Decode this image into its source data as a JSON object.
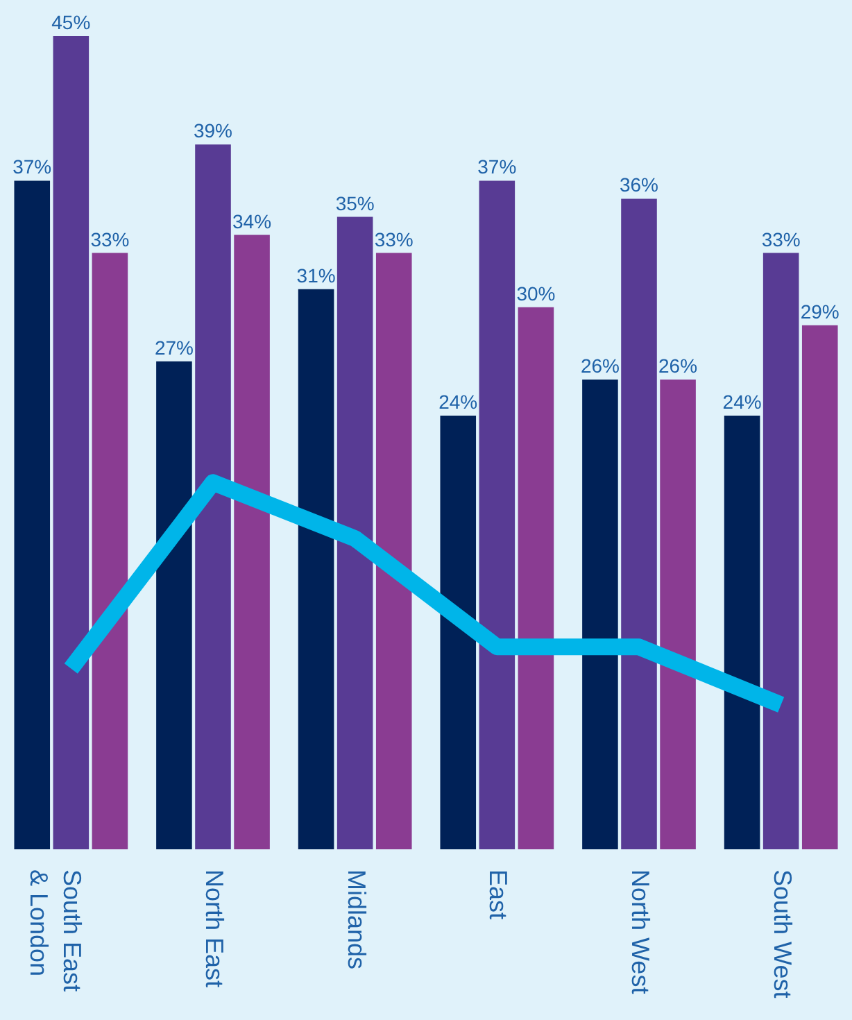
{
  "chart_data": {
    "type": "bar",
    "categories": [
      "South East & London",
      "North East",
      "Midlands",
      "East",
      "North West",
      "South West"
    ],
    "series": [
      {
        "color": "#002157",
        "values": [
          37,
          27,
          31,
          24,
          26,
          24
        ],
        "value_labels": [
          "37%",
          "27%",
          "31%",
          "24%",
          "26%",
          "24%"
        ]
      },
      {
        "color": "#583b94",
        "values": [
          45,
          39,
          35,
          37,
          36,
          33
        ],
        "value_labels": [
          "45%",
          "39%",
          "35%",
          "37%",
          "36%",
          "33%"
        ]
      },
      {
        "color": "#8a3c92",
        "values": [
          33,
          34,
          33,
          30,
          26,
          29
        ],
        "value_labels": [
          "33%",
          "34%",
          "33%",
          "30%",
          "26%",
          "29%"
        ]
      },
      {
        "type": "line",
        "color": "#00b5e9",
        "values": [
          10,
          20.3,
          17.2,
          11.2,
          11.2,
          8
        ],
        "line_style": "solid",
        "marker": "none"
      }
    ],
    "ylim": [
      0,
      47
    ],
    "tick_labels": "x",
    "grid": false
  }
}
